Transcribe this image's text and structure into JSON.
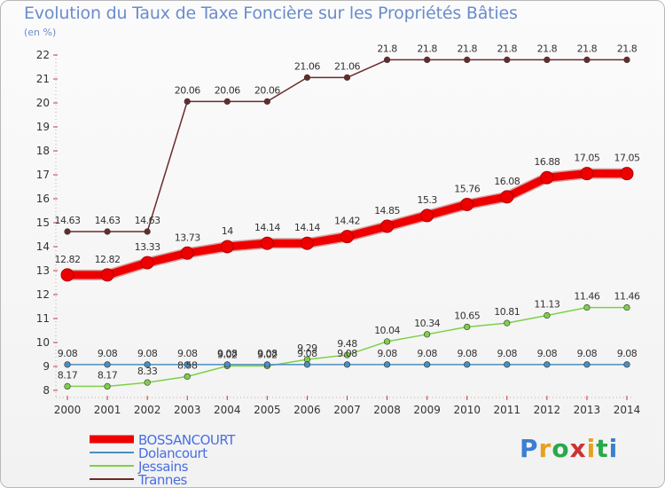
{
  "title": "Evolution du Taux de Taxe Foncière sur les Propriétés Bâties",
  "unit_label": "(en %)",
  "logo": {
    "text": "Proxiti",
    "colors": [
      "#3a7fd0",
      "#e8a020",
      "#2aa84a",
      "#d03030",
      "#e8a020",
      "#2aa84a",
      "#3a7fd0"
    ]
  },
  "chart_data": {
    "type": "line",
    "title": "Evolution du Taux de Taxe Foncière sur les Propriétés Bâties",
    "ylabel": "(en %)",
    "xlabel": "",
    "x": [
      "2000",
      "2001",
      "2002",
      "2003",
      "2004",
      "2005",
      "2006",
      "2007",
      "2008",
      "2009",
      "2010",
      "2011",
      "2012",
      "2013",
      "2014"
    ],
    "ylim": [
      8,
      22
    ],
    "yticks": [
      "8",
      "9",
      "10",
      "11",
      "12",
      "13",
      "14",
      "15",
      "16",
      "17",
      "18",
      "19",
      "20",
      "21",
      "22"
    ],
    "grid": false,
    "legend_position": "bottom-left",
    "series": [
      {
        "name": "Trannes",
        "color": "#6b2a2a",
        "values": [
          14.63,
          14.63,
          14.63,
          20.06,
          20.06,
          20.06,
          21.06,
          21.06,
          21.8,
          21.8,
          21.8,
          21.8,
          21.8,
          21.8,
          21.8
        ],
        "labels": [
          "14.63",
          "14.63",
          "14.63",
          "20.06",
          "20.06",
          "20.06",
          "21.06",
          "21.06",
          "21.8",
          "21.8",
          "21.8",
          "21.8",
          "21.8",
          "21.8",
          "21.8"
        ]
      },
      {
        "name": "Jessains",
        "color": "#7ed048",
        "values": [
          8.17,
          8.17,
          8.33,
          8.58,
          9.02,
          9.02,
          9.29,
          9.48,
          10.04,
          10.34,
          10.65,
          10.81,
          11.13,
          11.46,
          11.46
        ],
        "labels": [
          "8.17",
          "8.17",
          "8.33",
          "8.58",
          "9.02",
          "9.02",
          "9.29",
          "9.48",
          "10.04",
          "10.34",
          "10.65",
          "10.81",
          "11.13",
          "11.46",
          "11.46"
        ]
      },
      {
        "name": "Dolancourt",
        "color": "#4a8ec0",
        "values": [
          9.08,
          9.08,
          9.08,
          9.08,
          9.08,
          9.08,
          9.08,
          9.08,
          9.08,
          9.08,
          9.08,
          9.08,
          9.08,
          9.08,
          9.08
        ],
        "labels": [
          "9.08",
          "9.08",
          "9.08",
          "9.08",
          "9.08",
          "9.08",
          "9.08",
          "9.08",
          "9.08",
          "9.08",
          "9.08",
          "9.08",
          "9.08",
          "9.08",
          "9.08"
        ]
      },
      {
        "name": "BOSSANCOURT",
        "color": "#ee0000",
        "values": [
          12.82,
          12.82,
          13.33,
          13.73,
          14,
          14.14,
          14.14,
          14.42,
          14.85,
          15.3,
          15.76,
          16.08,
          16.88,
          17.05,
          17.05
        ],
        "labels": [
          "12.82",
          "12.82",
          "13.33",
          "13.73",
          "14",
          "14.14",
          "14.14",
          "14.42",
          "14.85",
          "15.3",
          "15.76",
          "16.08",
          "16.88",
          "17.05",
          "17.05"
        ]
      }
    ],
    "legend": [
      {
        "name": "BOSSANCOURT",
        "color": "#ee0000",
        "text_color": "#4a6ee0"
      },
      {
        "name": "Dolancourt",
        "color": "#4a8ec0",
        "text_color": "#4a6ee0"
      },
      {
        "name": "Jessains",
        "color": "#7ed048",
        "text_color": "#4a6ee0"
      },
      {
        "name": "Trannes",
        "color": "#6b2a2a",
        "text_color": "#4a6ee0"
      }
    ]
  }
}
